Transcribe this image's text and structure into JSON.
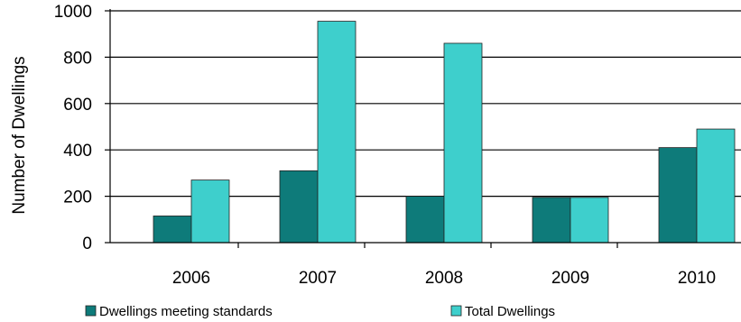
{
  "chart_data": {
    "type": "bar",
    "title": "",
    "xlabel": "",
    "ylabel": "Number of Dwellings",
    "categories": [
      "2006",
      "2007",
      "2008",
      "2009",
      "2010"
    ],
    "series": [
      {
        "name": "Dwellings meeting standards",
        "values": [
          115,
          310,
          200,
          195,
          410
        ],
        "color": "#0e7b7a"
      },
      {
        "name": "Total Dwellings",
        "values": [
          270,
          955,
          860,
          195,
          490
        ],
        "color": "#3ecfcc"
      }
    ],
    "yticks": [
      "0",
      "200",
      "400",
      "600",
      "800",
      "1000"
    ],
    "ylim": [
      0,
      1000
    ],
    "grid": true,
    "legend": "bottom"
  }
}
